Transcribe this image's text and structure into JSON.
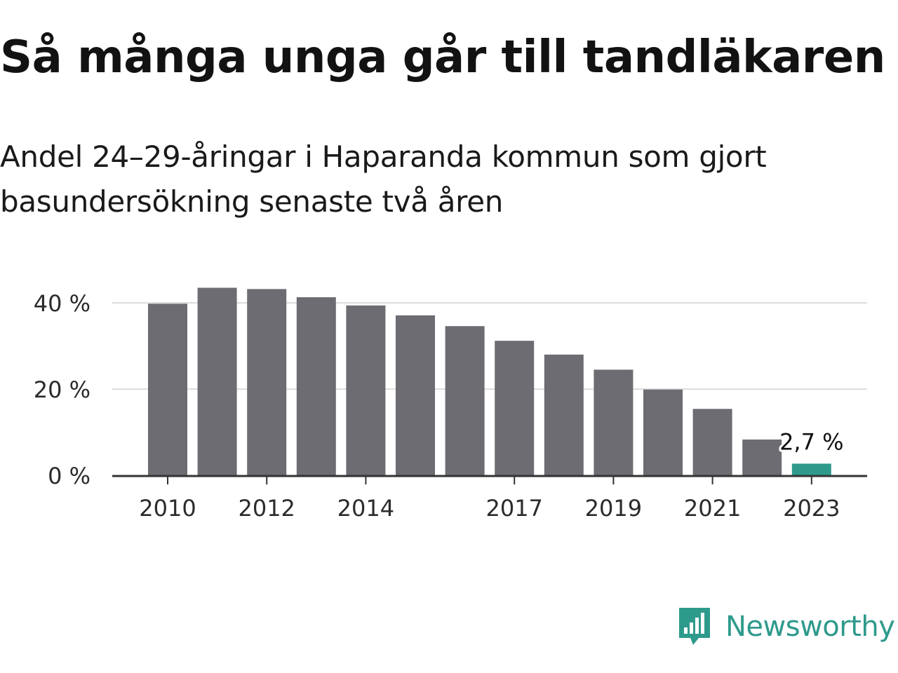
{
  "title": "Så många unga går till tandläkaren",
  "subtitle": "Andel 24–29-åringar i Haparanda kommun som gjort basundersökning senaste två åren",
  "colors": {
    "bar": "#6d6c72",
    "highlight": "#2e9a8c",
    "grid": "#dddddd",
    "axis": "#333333"
  },
  "chart_data": {
    "type": "bar",
    "x": [
      2010,
      2011,
      2012,
      2013,
      2014,
      2015,
      2016,
      2017,
      2018,
      2019,
      2020,
      2021,
      2022,
      2023
    ],
    "values": [
      39.8,
      43.5,
      43.2,
      41.3,
      39.4,
      37.1,
      34.6,
      31.2,
      28.0,
      24.5,
      19.9,
      15.4,
      8.3,
      2.7
    ],
    "y_ticks": [
      "0 %",
      "20 %",
      "40 %"
    ],
    "y_tick_values": [
      0,
      20,
      40
    ],
    "x_tick_labels": [
      "2010",
      "2012",
      "2014",
      "2017",
      "2019",
      "2021",
      "2023"
    ],
    "x_tick_values": [
      2010,
      2012,
      2014,
      2017,
      2019,
      2021,
      2023
    ],
    "ylim": [
      0,
      45
    ],
    "grid": true,
    "highlight": {
      "x": 2023,
      "label": "2,7 %"
    }
  },
  "logo": {
    "text": "Newsworthy"
  }
}
